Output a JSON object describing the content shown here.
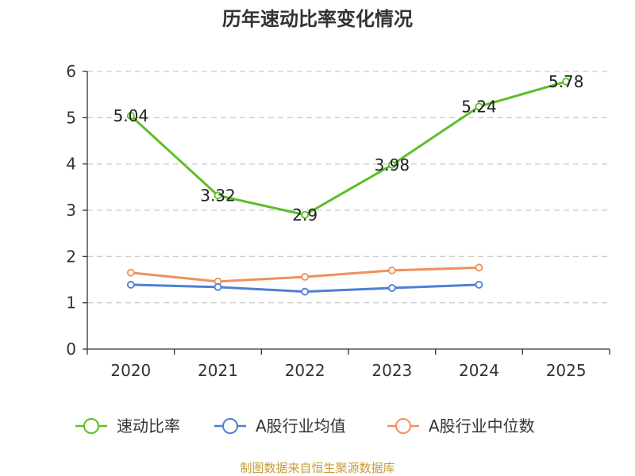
{
  "chart_data": {
    "type": "line",
    "title": "历年速动比率变化情况",
    "categories": [
      "2020",
      "2021",
      "2022",
      "2023",
      "2024",
      "2025"
    ],
    "ylim": [
      0,
      6
    ],
    "yticks": [
      0,
      1,
      2,
      3,
      4,
      5,
      6
    ],
    "grid": true,
    "legend_position": "bottom",
    "series": [
      {
        "name": "速动比率",
        "color": "#5cbf26",
        "values": [
          5.04,
          3.32,
          2.9,
          3.98,
          5.24,
          5.78
        ],
        "show_labels": true
      },
      {
        "name": "A股行业均值",
        "color": "#4e7fd6",
        "values": [
          1.39,
          1.34,
          1.24,
          1.32,
          1.39,
          null
        ],
        "show_labels": false
      },
      {
        "name": "A股行业中位数",
        "color": "#f28f5a",
        "values": [
          1.65,
          1.46,
          1.56,
          1.7,
          1.76,
          null
        ],
        "show_labels": false
      }
    ],
    "source": "制图数据来自恒生聚源数据库"
  }
}
